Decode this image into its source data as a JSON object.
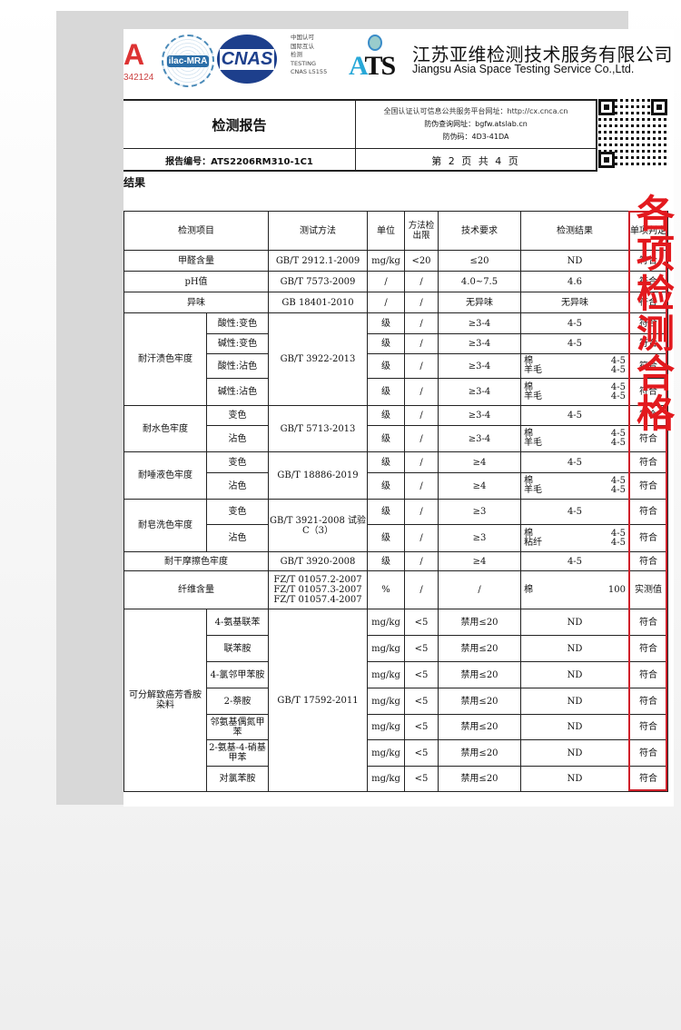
{
  "logos": {
    "cma_no": "342124",
    "ilac": "ilac-MRA",
    "cnas": "CNAS",
    "cnas_text": [
      "中国认可",
      "国际互认",
      "检测",
      "TESTING",
      "CNAS L5155"
    ],
    "ats": "ATS"
  },
  "company": {
    "name_cn": "江苏亚维检测技术服务有限公司",
    "name_en": "Jiangsu Asia Space Testing Service Co.,Ltd."
  },
  "header": {
    "title": "检测报告",
    "platform": "全国认证认可信息公共服务平台网址：http://cx.cnca.cn",
    "verify_site": "防伪查询网址：bgfw.atslab.cn",
    "code": "防伪码：4D3-41DA",
    "report_no": "报告编号：ATS2206RM310-1C1",
    "page": "第 2 页 共 4 页"
  },
  "section_title": "结果",
  "table": {
    "headers": [
      "检测项目",
      "测试方法",
      "单位",
      "方法检出限",
      "技术要求",
      "检测结果",
      "单项判定"
    ],
    "groups": [
      {
        "item": "甲醛含量",
        "method": "GB/T 2912.1-2009",
        "rows": [
          {
            "unit": "mg/kg",
            "limit": "<20",
            "req": "≤20",
            "result": "ND",
            "verdict": "符合"
          }
        ]
      },
      {
        "item": "pH值",
        "method": "GB/T 7573-2009",
        "rows": [
          {
            "unit": "/",
            "limit": "/",
            "req": "4.0~7.5",
            "result": "4.6",
            "verdict": "符合"
          }
        ]
      },
      {
        "item": "异味",
        "method": "GB 18401-2010",
        "rows": [
          {
            "unit": "/",
            "limit": "/",
            "req": "无异味",
            "result": "无异味",
            "verdict": "符合"
          }
        ]
      },
      {
        "item": "耐汗渍色牢度",
        "method": "GB/T 3922-2013",
        "rows": [
          {
            "sub": "酸性:变色",
            "unit": "级",
            "limit": "/",
            "req": "≥3-4",
            "result": "4-5",
            "verdict": "符合"
          },
          {
            "sub": "碱性:变色",
            "unit": "级",
            "limit": "/",
            "req": "≥3-4",
            "result": "4-5",
            "verdict": "符合"
          },
          {
            "sub": "酸性:沾色",
            "unit": "级",
            "limit": "/",
            "req": "≥3-4",
            "result": [
              [
                "棉",
                "4-5"
              ],
              [
                "羊毛",
                "4-5"
              ]
            ],
            "verdict": "符合"
          },
          {
            "sub": "碱性:沾色",
            "unit": "级",
            "limit": "/",
            "req": "≥3-4",
            "result": [
              [
                "棉",
                "4-5"
              ],
              [
                "羊毛",
                "4-5"
              ]
            ],
            "verdict": "符合"
          }
        ]
      },
      {
        "item": "耐水色牢度",
        "method": "GB/T 5713-2013",
        "rows": [
          {
            "sub": "变色",
            "unit": "级",
            "limit": "/",
            "req": "≥3-4",
            "result": "4-5",
            "verdict": "符合"
          },
          {
            "sub": "沾色",
            "unit": "级",
            "limit": "/",
            "req": "≥3-4",
            "result": [
              [
                "棉",
                "4-5"
              ],
              [
                "羊毛",
                "4-5"
              ]
            ],
            "verdict": "符合"
          }
        ]
      },
      {
        "item": "耐唾液色牢度",
        "method": "GB/T  18886-2019",
        "rows": [
          {
            "sub": "变色",
            "unit": "级",
            "limit": "/",
            "req": "≥4",
            "result": "4-5",
            "verdict": "符合"
          },
          {
            "sub": "沾色",
            "unit": "级",
            "limit": "/",
            "req": "≥4",
            "result": [
              [
                "棉",
                "4-5"
              ],
              [
                "羊毛",
                "4-5"
              ]
            ],
            "verdict": "符合"
          }
        ]
      },
      {
        "item": "耐皂洗色牢度",
        "method": "GB/T 3921-2008 试验C（3）",
        "rows": [
          {
            "sub": "变色",
            "unit": "级",
            "limit": "/",
            "req": "≥3",
            "result": "4-5",
            "verdict": "符合"
          },
          {
            "sub": "沾色",
            "unit": "级",
            "limit": "/",
            "req": "≥3",
            "result": [
              [
                "棉",
                "4-5"
              ],
              [
                "粘纤",
                "4-5"
              ]
            ],
            "verdict": "符合"
          }
        ]
      },
      {
        "item": "耐干摩擦色牢度",
        "method": "GB/T 3920-2008",
        "rows": [
          {
            "unit": "级",
            "limit": "/",
            "req": "≥4",
            "result": "4-5",
            "verdict": "符合"
          }
        ]
      },
      {
        "item": "纤维含量",
        "method": "FZ/T 01057.2-2007\nFZ/T 01057.3-2007\nFZ/T 01057.4-2007",
        "rows": [
          {
            "unit": "%",
            "limit": "/",
            "req": "/",
            "result_line": [
              "棉",
              "100"
            ],
            "verdict": "实测值"
          }
        ]
      },
      {
        "item": "可分解致癌芳香胺染料",
        "method": "GB/T 17592-2011",
        "rows": [
          {
            "sub": "4-氨基联苯",
            "unit": "mg/kg",
            "limit": "<5",
            "req": "禁用≤20",
            "result": "ND",
            "verdict": "符合"
          },
          {
            "sub": "联苯胺",
            "unit": "mg/kg",
            "limit": "<5",
            "req": "禁用≤20",
            "result": "ND",
            "verdict": "符合"
          },
          {
            "sub": "4-氯邻甲苯胺",
            "unit": "mg/kg",
            "limit": "<5",
            "req": "禁用≤20",
            "result": "ND",
            "verdict": "符合"
          },
          {
            "sub": "2-萘胺",
            "unit": "mg/kg",
            "limit": "<5",
            "req": "禁用≤20",
            "result": "ND",
            "verdict": "符合"
          },
          {
            "sub": "邻氨基偶氮甲苯",
            "unit": "mg/kg",
            "limit": "<5",
            "req": "禁用≤20",
            "result": "ND",
            "verdict": "符合"
          },
          {
            "sub": "2-氨基-4-硝基甲苯",
            "unit": "mg/kg",
            "limit": "<5",
            "req": "禁用≤20",
            "result": "ND",
            "verdict": "符合"
          },
          {
            "sub": "对氯苯胺",
            "unit": "mg/kg",
            "limit": "<5",
            "req": "禁用≤20",
            "result": "ND",
            "verdict": "符合"
          }
        ]
      }
    ]
  },
  "side_label": "各项检测合格",
  "colors": {
    "highlight": "#d0202a",
    "side_text": "#e3191e",
    "ats_blue": "#28a8d8",
    "cnas_blue": "#1d3f8c"
  }
}
